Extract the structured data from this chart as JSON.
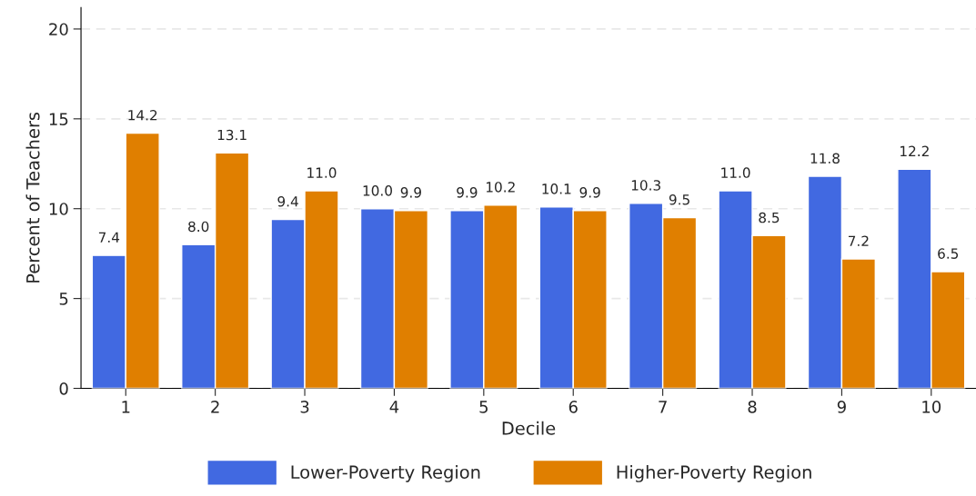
{
  "chart_data": {
    "type": "bar",
    "xlabel": "Decile",
    "ylabel": "Percent of Teachers",
    "categories": [
      "1",
      "2",
      "3",
      "4",
      "5",
      "6",
      "7",
      "8",
      "9",
      "10"
    ],
    "series": [
      {
        "name": "Lower-Poverty Region",
        "color": "#4169e1",
        "values": [
          7.4,
          8.0,
          9.4,
          10.0,
          9.9,
          10.1,
          10.3,
          11.0,
          11.8,
          12.2
        ],
        "value_labels": [
          "7.4",
          "8.0",
          "9.4",
          "10.0",
          "9.9",
          "10.1",
          "10.3",
          "11.0",
          "11.8",
          "12.2"
        ]
      },
      {
        "name": "Higher-Poverty Region",
        "color": "#e07f00",
        "values": [
          14.2,
          13.1,
          11.0,
          9.9,
          10.2,
          9.9,
          9.5,
          8.5,
          7.2,
          6.5
        ],
        "value_labels": [
          "14.2",
          "13.1",
          "11.0",
          "9.9",
          "10.2",
          "9.9",
          "9.5",
          "8.5",
          "7.2",
          "6.5"
        ]
      }
    ],
    "ylim": [
      0,
      21.2
    ],
    "yticks": [
      0,
      5,
      10,
      15,
      20
    ],
    "grid": "y",
    "legend": "bottom"
  }
}
